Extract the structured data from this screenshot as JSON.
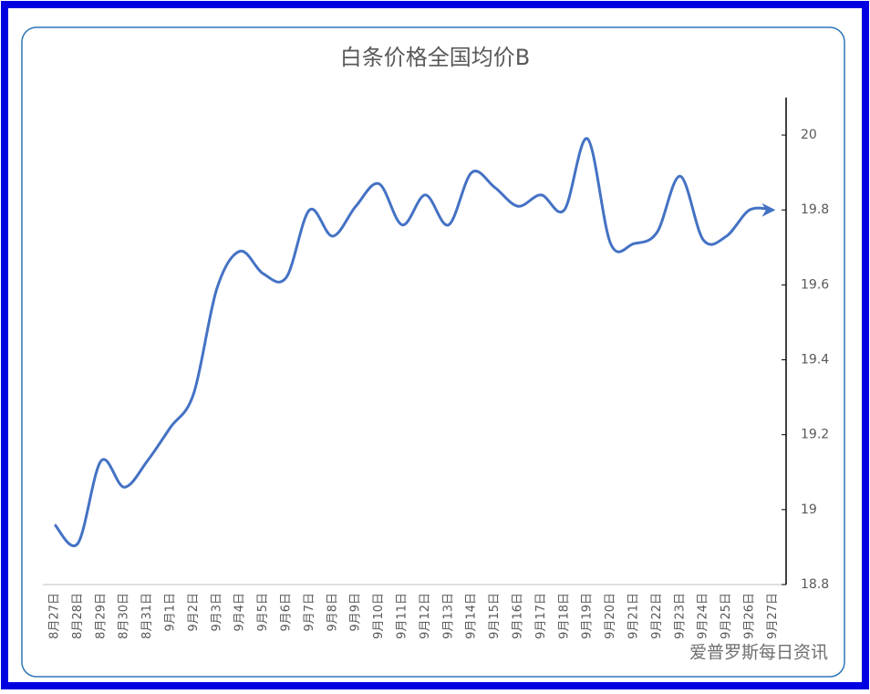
{
  "chart_data": {
    "type": "line",
    "title": "白条价格全国均价B",
    "categories": [
      "8月27日",
      "8月28日",
      "8月29日",
      "8月30日",
      "8月31日",
      "9月1日",
      "9月2日",
      "9月3日",
      "9月4日",
      "9月5日",
      "9月6日",
      "9月7日",
      "9月8日",
      "9月9日",
      "9月10日",
      "9月11日",
      "9月12日",
      "9月13日",
      "9月14日",
      "9月15日",
      "9月16日",
      "9月17日",
      "9月18日",
      "9月19日",
      "9月20日",
      "9月21日",
      "9月22日",
      "9月23日",
      "9月24日",
      "9月25日",
      "9月26日",
      "9月27日"
    ],
    "series": [
      {
        "name": "白条价格全国均价B",
        "color": "#4472c4",
        "values": [
          18.96,
          18.91,
          19.13,
          19.06,
          19.13,
          19.22,
          19.31,
          19.59,
          19.69,
          19.63,
          19.62,
          19.8,
          19.73,
          19.81,
          19.87,
          19.76,
          19.84,
          19.76,
          19.9,
          19.86,
          19.81,
          19.84,
          19.8,
          19.99,
          19.71,
          19.71,
          19.74,
          19.89,
          19.72,
          19.73,
          19.8,
          19.8
        ]
      }
    ],
    "ylim": [
      18.8,
      20.1
    ],
    "yticks": [
      18.8,
      19,
      19.2,
      19.4,
      19.6,
      19.8,
      20
    ],
    "y_axis_side": "right",
    "watermark": "爱普罗斯每日资讯"
  }
}
